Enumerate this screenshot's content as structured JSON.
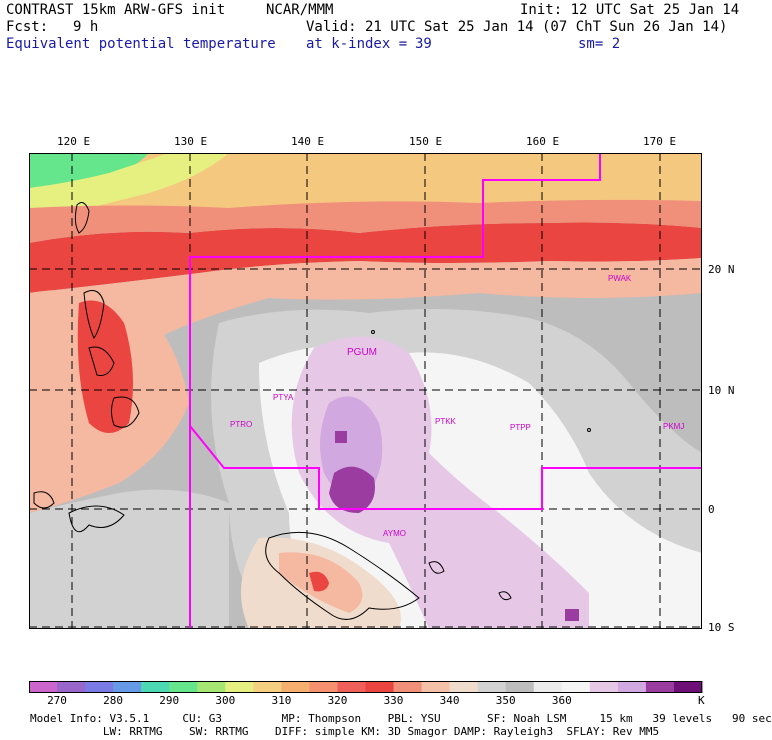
{
  "header": {
    "model": "CONTRAST 15km ARW-GFS init",
    "center": "NCAR/MMM",
    "init": "Init: 12 UTC Sat 25 Jan 14",
    "fcst_label": "Fcst:",
    "fcst_value": "9 h",
    "valid": "Valid: 21 UTC Sat 25 Jan 14 (07 ChT Sun 26 Jan 14)",
    "field": "Equivalent potential temperature",
    "level": "at k-index =",
    "level_value": "39",
    "smooth": "sm= 2"
  },
  "map": {
    "longitude_labels": [
      "120 E",
      "130 E",
      "140 E",
      "150 E",
      "160 E",
      "170 E"
    ],
    "latitude_labels": [
      "20 N",
      "10 N",
      "0",
      "10 S"
    ],
    "stations": [
      "PWAK",
      "PGUM",
      "PTYA",
      "PTRO",
      "PTKK",
      "PTPP",
      "PKMJ",
      "AYMO"
    ],
    "boundary_color": "#ff00ff"
  },
  "colorbar": {
    "labels": [
      "270",
      "280",
      "290",
      "300",
      "310",
      "320",
      "330",
      "340",
      "350",
      "360"
    ],
    "unit": "K",
    "colors": [
      "#cc66cc",
      "#9966cc",
      "#7b7be6",
      "#6699e6",
      "#4dd9b3",
      "#66e68c",
      "#a6e673",
      "#e6f080",
      "#f5d080",
      "#f5b070",
      "#f5916e",
      "#f0605a",
      "#ea4540",
      "#f0907a",
      "#f5c0a8",
      "#f0dccc",
      "#d2d2d2",
      "#bdbdbd",
      "#ebebeb",
      "#f5f5f5",
      "#e6c8e6",
      "#d2a8e1",
      "#9a3ca0",
      "#6e0f78"
    ]
  },
  "footer": {
    "line1": "Model Info: V3.5.1     CU: G3         MP: Thompson    PBL: YSU       SF: Noah LSM     15 km   39 levels   90 sec",
    "line2": "           LW: RRTMG    SW: RRTMG    DIFF: simple KM: 3D Smagor DAMP: Rayleigh3  SFLAY: Rev MM5"
  }
}
